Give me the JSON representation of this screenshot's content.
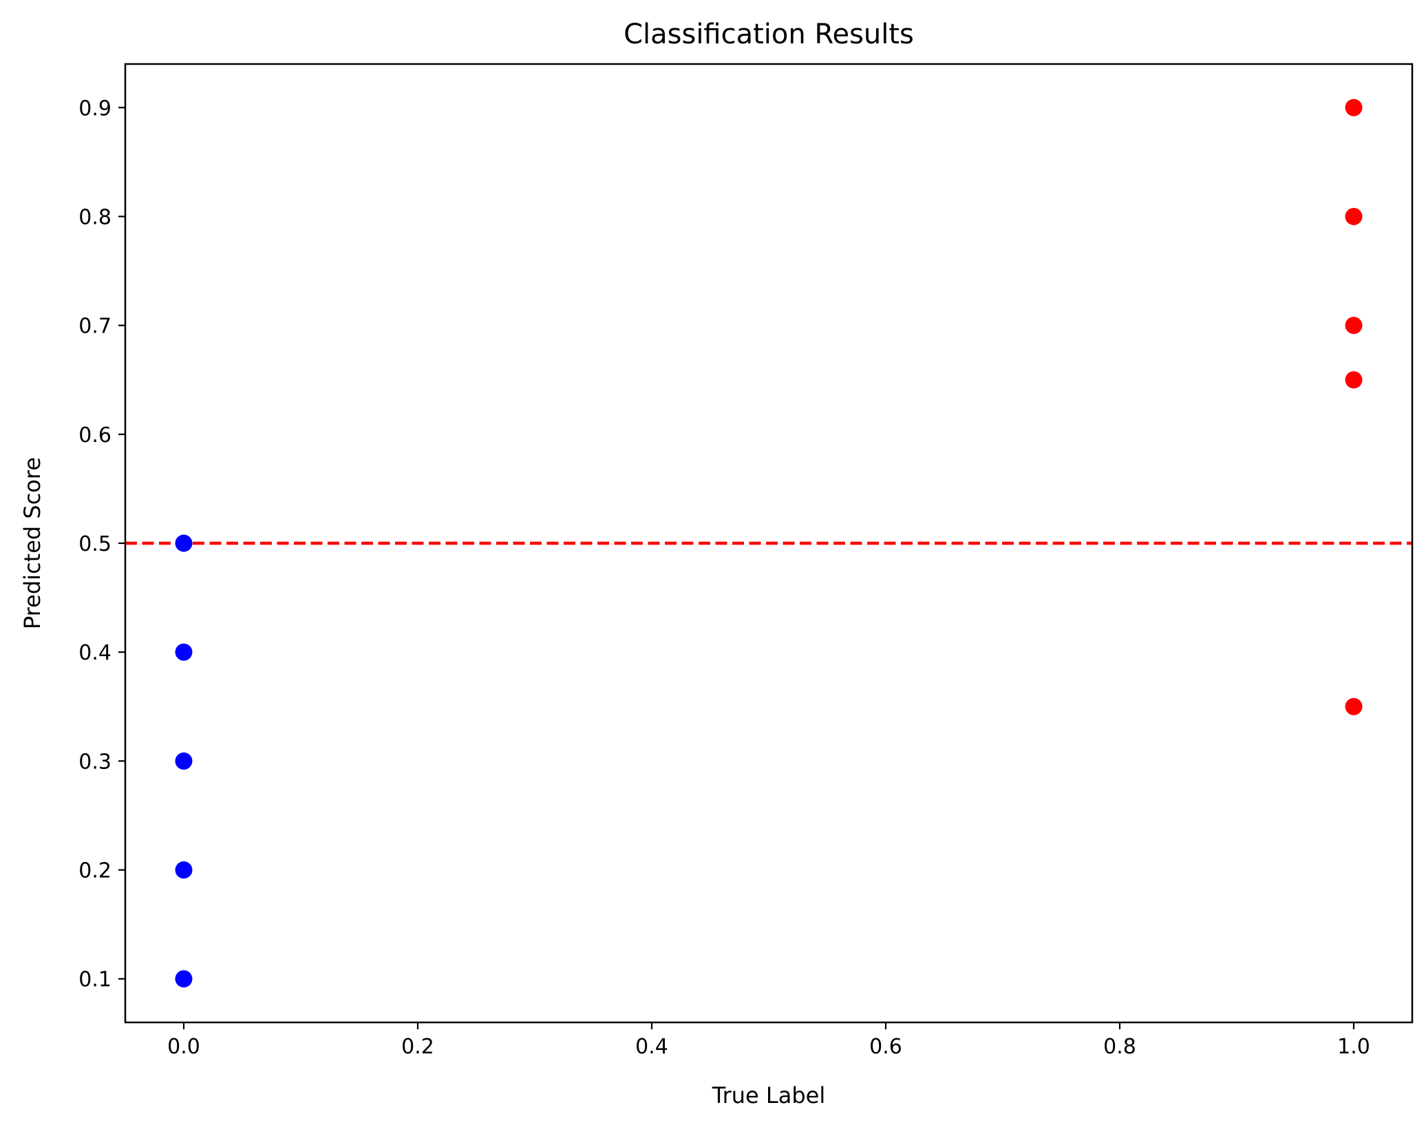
{
  "chart_data": {
    "type": "scatter",
    "title": "Classification Results",
    "xlabel": "True Label",
    "ylabel": "Predicted Score",
    "xlim": [
      -0.05,
      1.05
    ],
    "ylim": [
      0.06,
      0.94
    ],
    "xticks": [
      0.0,
      0.2,
      0.4,
      0.6,
      0.8,
      1.0
    ],
    "xtick_labels": [
      "0.0",
      "0.2",
      "0.4",
      "0.6",
      "0.8",
      "1.0"
    ],
    "yticks": [
      0.1,
      0.2,
      0.3,
      0.4,
      0.5,
      0.6,
      0.7,
      0.8,
      0.9
    ],
    "ytick_labels": [
      "0.1",
      "0.2",
      "0.3",
      "0.4",
      "0.5",
      "0.6",
      "0.7",
      "0.8",
      "0.9"
    ],
    "grid": false,
    "series": [
      {
        "color": "#0000ff",
        "points": [
          {
            "x": 0,
            "y": 0.1
          },
          {
            "x": 0,
            "y": 0.2
          },
          {
            "x": 0,
            "y": 0.3
          },
          {
            "x": 0,
            "y": 0.4
          },
          {
            "x": 0,
            "y": 0.5
          }
        ]
      },
      {
        "color": "#ff0000",
        "points": [
          {
            "x": 1,
            "y": 0.35
          },
          {
            "x": 1,
            "y": 0.65
          },
          {
            "x": 1,
            "y": 0.7
          },
          {
            "x": 1,
            "y": 0.8
          },
          {
            "x": 1,
            "y": 0.9
          }
        ]
      }
    ],
    "threshold_line": {
      "y": 0.5,
      "color": "#ff0000",
      "style": "dashed"
    }
  }
}
